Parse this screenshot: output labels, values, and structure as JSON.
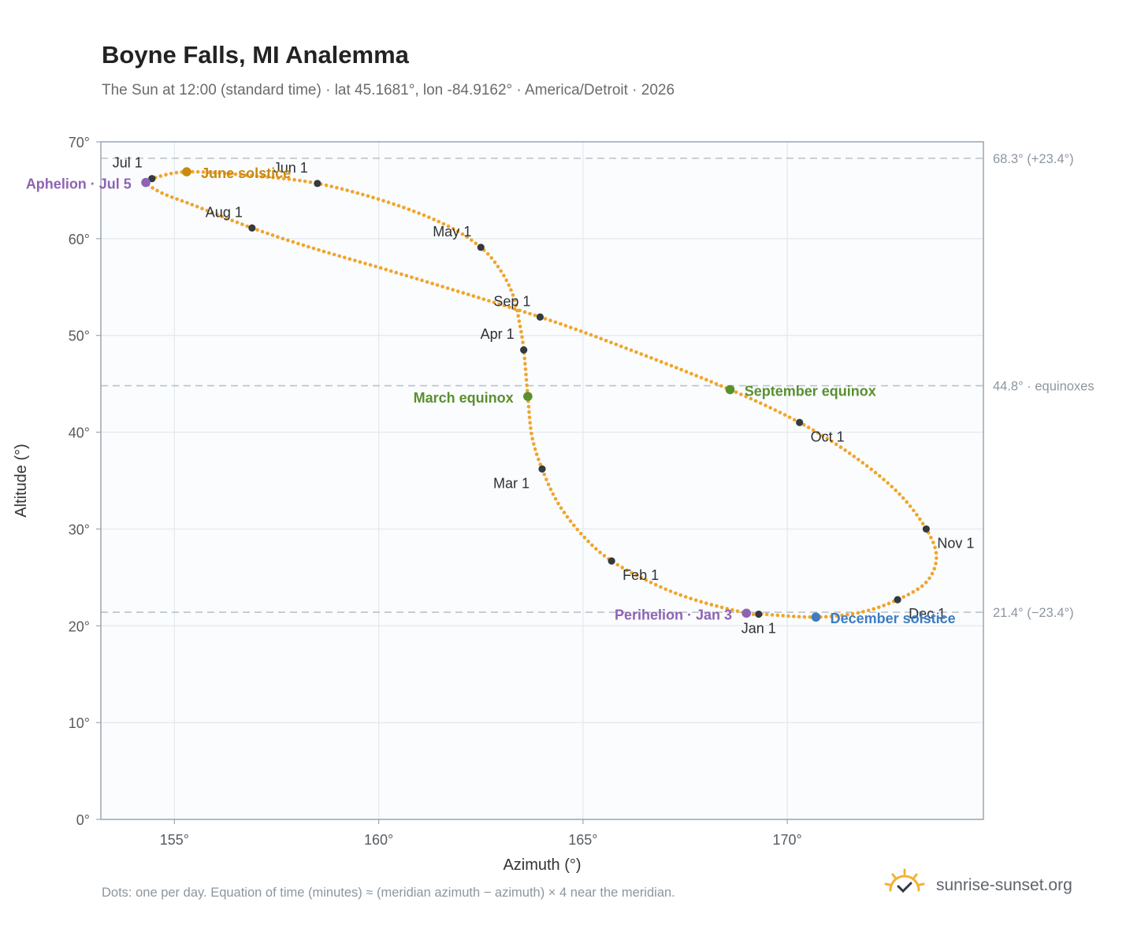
{
  "header": {
    "title": "Boyne Falls, MI Analemma",
    "subtitle": "The Sun at 12:00 (standard time) · lat 45.1681°, lon -84.9162° · America/Detroit · 2026"
  },
  "footer": {
    "note": "Dots: one per day. Equation of time (minutes) ≈ (meridian azimuth − azimuth) × 4 near the meridian.",
    "brand": "sunrise-sunset.org",
    "brand_icon": "sun-check-icon"
  },
  "colors": {
    "path": "#f2a42c",
    "month_marker": "#333a40",
    "june_solstice": "#c98a10",
    "december_solstice": "#3d7cc0",
    "equinox": "#5a8f2e",
    "apsis": "#8e63b3",
    "reference_line": "#b9c3cc",
    "plot_background": "#fafcfe",
    "grid": "#e3e8ed",
    "frame": "#9aa6b2"
  },
  "chart_data": {
    "type": "scatter",
    "xlabel": "Azimuth (°)",
    "ylabel": "Altitude (°)",
    "xlim": [
      153.2,
      174.8
    ],
    "ylim": [
      0,
      70
    ],
    "x_ticks": [
      155,
      160,
      165,
      170
    ],
    "y_ticks": [
      0,
      10,
      20,
      30,
      40,
      50,
      60,
      70
    ],
    "x_tick_labels": [
      "155°",
      "160°",
      "165°",
      "170°"
    ],
    "y_tick_labels": [
      "0°",
      "10°",
      "20°",
      "30°",
      "40°",
      "50°",
      "60°",
      "70°"
    ],
    "grid": true,
    "path_points": [
      {
        "date": "Jan 1",
        "az": 169.3,
        "alt": 21.2
      },
      {
        "date": "Jan 3",
        "az": 169.0,
        "alt": 21.3
      },
      {
        "date": "Jan 12",
        "az": 167.8,
        "alt": 22.6
      },
      {
        "date": "Jan 20",
        "az": 166.8,
        "alt": 24.2
      },
      {
        "date": "Feb 1",
        "az": 165.7,
        "alt": 26.7
      },
      {
        "date": "Feb 10",
        "az": 165.0,
        "alt": 29.3
      },
      {
        "date": "Feb 20",
        "az": 164.4,
        "alt": 32.6
      },
      {
        "date": "Mar 1",
        "az": 164.0,
        "alt": 36.2
      },
      {
        "date": "Mar 10",
        "az": 163.75,
        "alt": 39.6
      },
      {
        "date": "Mar 20",
        "az": 163.65,
        "alt": 43.7
      },
      {
        "date": "Apr 1",
        "az": 163.55,
        "alt": 48.5
      },
      {
        "date": "Apr 8",
        "az": 163.45,
        "alt": 51.2
      },
      {
        "date": "Apr 15",
        "az": 163.3,
        "alt": 54.0
      },
      {
        "date": "Apr 22",
        "az": 163.0,
        "alt": 56.6
      },
      {
        "date": "May 1",
        "az": 162.5,
        "alt": 59.1
      },
      {
        "date": "May 10",
        "az": 161.6,
        "alt": 61.5
      },
      {
        "date": "May 20",
        "az": 160.2,
        "alt": 63.8
      },
      {
        "date": "Jun 1",
        "az": 158.5,
        "alt": 65.7
      },
      {
        "date": "Jun 10",
        "az": 156.9,
        "alt": 66.5
      },
      {
        "date": "Jun 21",
        "az": 155.3,
        "alt": 66.9
      },
      {
        "date": "Jul 1",
        "az": 154.45,
        "alt": 66.2
      },
      {
        "date": "Jul 5",
        "az": 154.3,
        "alt": 65.8
      },
      {
        "date": "Jul 12",
        "az": 154.7,
        "alt": 64.7
      },
      {
        "date": "Jul 20",
        "az": 155.5,
        "alt": 63.4
      },
      {
        "date": "Aug 1",
        "az": 156.9,
        "alt": 61.1
      },
      {
        "date": "Aug 10",
        "az": 158.4,
        "alt": 59.0
      },
      {
        "date": "Aug 20",
        "az": 160.5,
        "alt": 56.4
      },
      {
        "date": "Sep 1",
        "az": 163.95,
        "alt": 51.9
      },
      {
        "date": "Sep 10",
        "az": 166.1,
        "alt": 48.6
      },
      {
        "date": "Sep 22",
        "az": 168.6,
        "alt": 44.4
      },
      {
        "date": "Oct 1",
        "az": 170.3,
        "alt": 41.0
      },
      {
        "date": "Oct 10",
        "az": 171.6,
        "alt": 37.6
      },
      {
        "date": "Oct 20",
        "az": 172.7,
        "alt": 33.8
      },
      {
        "date": "Nov 1",
        "az": 173.4,
        "alt": 30.0
      },
      {
        "date": "Nov 10",
        "az": 173.65,
        "alt": 27.1
      },
      {
        "date": "Nov 20",
        "az": 173.4,
        "alt": 24.5
      },
      {
        "date": "Dec 1",
        "az": 172.7,
        "alt": 22.7
      },
      {
        "date": "Dec 10",
        "az": 171.8,
        "alt": 21.4
      },
      {
        "date": "Dec 21",
        "az": 170.7,
        "alt": 20.9
      },
      {
        "date": "Dec 31",
        "az": 169.4,
        "alt": 21.2
      }
    ],
    "month_markers": [
      {
        "label": "Jan 1",
        "az": 169.3,
        "alt": 21.2,
        "label_side": "below"
      },
      {
        "label": "Feb 1",
        "az": 165.7,
        "alt": 26.7,
        "label_side": "below-right"
      },
      {
        "label": "Mar 1",
        "az": 164.0,
        "alt": 36.2,
        "label_side": "below-left"
      },
      {
        "label": "Apr 1",
        "az": 163.55,
        "alt": 48.5,
        "label_side": "above-left"
      },
      {
        "label": "May 1",
        "az": 162.5,
        "alt": 59.1,
        "label_side": "above-left"
      },
      {
        "label": "Jun 1",
        "az": 158.5,
        "alt": 65.7,
        "label_side": "above-left"
      },
      {
        "label": "Jul 1",
        "az": 154.45,
        "alt": 66.2,
        "label_side": "above-left"
      },
      {
        "label": "Aug 1",
        "az": 156.9,
        "alt": 61.1,
        "label_side": "above-left"
      },
      {
        "label": "Sep 1",
        "az": 163.95,
        "alt": 51.9,
        "label_side": "above-left"
      },
      {
        "label": "Oct 1",
        "az": 170.3,
        "alt": 41.0,
        "label_side": "below-right"
      },
      {
        "label": "Nov 1",
        "az": 173.4,
        "alt": 30.0,
        "label_side": "below-right"
      },
      {
        "label": "Dec 1",
        "az": 172.7,
        "alt": 22.7,
        "label_side": "below-right"
      }
    ],
    "events": [
      {
        "label": "June solstice",
        "az": 155.3,
        "alt": 66.9,
        "kind": "june_solstice",
        "label_side": "right"
      },
      {
        "label": "December solstice",
        "az": 170.7,
        "alt": 20.9,
        "kind": "december_solstice",
        "label_side": "right"
      },
      {
        "label": "March equinox",
        "az": 163.65,
        "alt": 43.7,
        "kind": "equinox",
        "label_side": "left"
      },
      {
        "label": "September equinox",
        "az": 168.6,
        "alt": 44.4,
        "kind": "equinox",
        "label_side": "right"
      },
      {
        "label": "Aphelion · Jul 5",
        "az": 154.3,
        "alt": 65.8,
        "kind": "apsis",
        "label_side": "left"
      },
      {
        "label": "Perihelion · Jan 3",
        "az": 169.0,
        "alt": 21.3,
        "kind": "apsis",
        "label_side": "left"
      }
    ],
    "reference_lines": [
      {
        "alt": 68.3,
        "label": "68.3° (+23.4°)"
      },
      {
        "alt": 44.8,
        "label": "44.8° · equinoxes"
      },
      {
        "alt": 21.4,
        "label": "21.4° (−23.4°)"
      }
    ]
  }
}
